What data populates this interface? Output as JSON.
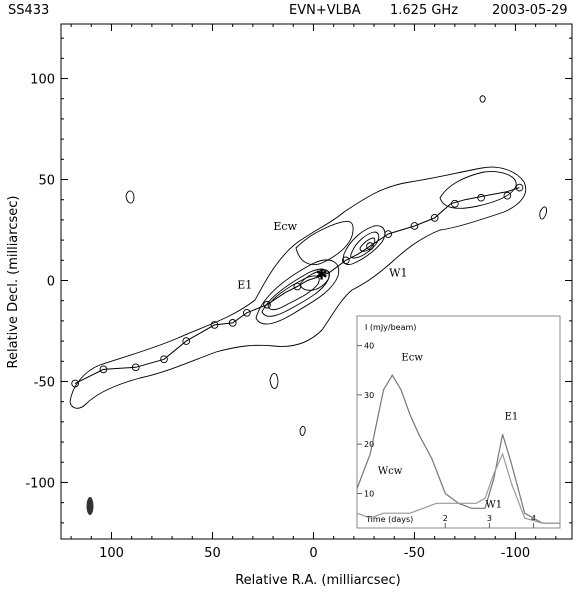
{
  "chart_data": [
    {
      "type": "contour",
      "header": {
        "source": "SS433",
        "array": "EVN+VLBA",
        "freq": "1.625 GHz",
        "date": "2003-05-29"
      },
      "xlabel": "Relative R.A. (milliarcsec)",
      "ylabel": "Relative Decl. (milliarcsec)",
      "xlim": [
        125,
        -128
      ],
      "ylim": [
        -128,
        127
      ],
      "xticks": [
        100,
        50,
        0,
        -50,
        -100
      ],
      "yticks": [
        100,
        50,
        0,
        -50,
        -100
      ],
      "annotations": [
        {
          "label": "Ecw",
          "x": 14,
          "y": 25
        },
        {
          "label": "W1",
          "x": -42,
          "y": 2
        },
        {
          "label": "E1",
          "x": 34,
          "y": -4
        }
      ],
      "kinematic_track": [
        [
          118,
          -51
        ],
        [
          104,
          -44
        ],
        [
          88,
          -43
        ],
        [
          74,
          -39
        ],
        [
          63,
          -30
        ],
        [
          49,
          -22
        ],
        [
          40,
          -21
        ],
        [
          33,
          -16
        ],
        [
          23,
          -12
        ],
        [
          14,
          -6
        ],
        [
          8,
          -3
        ],
        [
          3,
          0
        ],
        [
          -3,
          2
        ],
        [
          -8,
          4
        ],
        [
          -16,
          10
        ],
        [
          -22,
          13
        ],
        [
          -28,
          17
        ],
        [
          -37,
          23
        ],
        [
          -50,
          27
        ],
        [
          -60,
          31
        ],
        [
          -68,
          38
        ],
        [
          -75,
          40
        ],
        [
          -85,
          42
        ],
        [
          -96,
          44
        ],
        [
          -102,
          46
        ]
      ],
      "track_markers": [
        [
          118,
          -51
        ],
        [
          104,
          -44
        ],
        [
          88,
          -43
        ],
        [
          74,
          -39
        ],
        [
          63,
          -30
        ],
        [
          49,
          -22
        ],
        [
          40,
          -21
        ],
        [
          33,
          -16
        ],
        [
          23,
          -12
        ],
        [
          8,
          -3
        ],
        [
          -16,
          10
        ],
        [
          -28,
          17
        ],
        [
          -37,
          23
        ],
        [
          -50,
          27
        ],
        [
          -60,
          31
        ],
        [
          -70,
          38
        ],
        [
          -83,
          41
        ],
        [
          -96,
          42
        ],
        [
          -102,
          46
        ]
      ],
      "core_position": [
        -4,
        3
      ]
    },
    {
      "type": "line",
      "ylabel": "I (mJy/beam)",
      "xlabel": "Time (days)",
      "xlim": [
        0,
        4.6
      ],
      "ylim": [
        3,
        46
      ],
      "xticks": [
        2,
        3,
        4
      ],
      "yticks": [
        10,
        20,
        30,
        40
      ],
      "series": [
        {
          "name": "Ecw",
          "x": [
            0,
            0.3,
            0.6,
            0.8,
            1.0,
            1.2,
            1.4,
            1.7,
            2.0,
            2.3,
            2.6,
            2.9,
            3.1,
            3.3,
            3.5,
            3.8,
            4.2,
            4.6
          ],
          "values": [
            11,
            18,
            31,
            34,
            31,
            26,
            22,
            17,
            10,
            8,
            7,
            7,
            13,
            22,
            16,
            6,
            4,
            4
          ]
        },
        {
          "name": "Wcw",
          "x": [
            0,
            0.3,
            0.6,
            0.9,
            1.2,
            1.5,
            1.8,
            2.1,
            2.4,
            2.7,
            2.9,
            3.1,
            3.3,
            3.5,
            3.8,
            4.2,
            4.6
          ],
          "values": [
            6,
            5,
            6,
            6,
            6,
            7,
            8,
            8,
            8,
            8,
            9,
            14,
            18,
            12,
            5,
            4,
            4
          ]
        }
      ],
      "labels": [
        "Ecw",
        "Wcw",
        "E1",
        "W1"
      ]
    }
  ]
}
